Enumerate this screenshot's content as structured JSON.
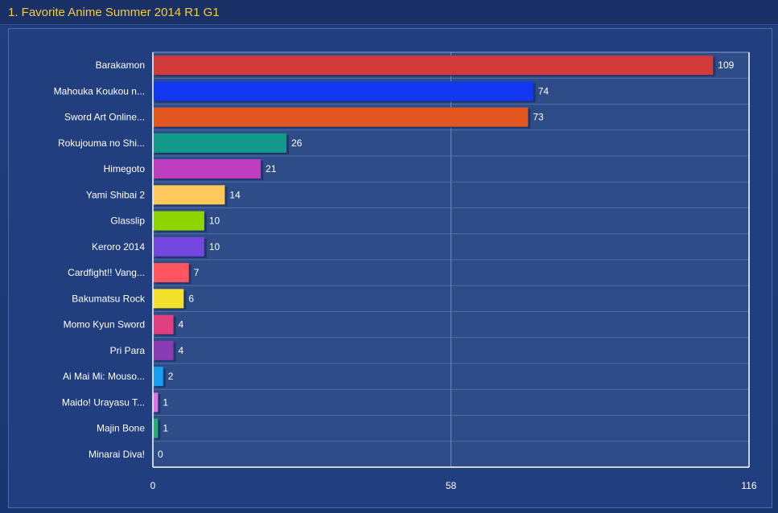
{
  "window": {
    "title": "1. Favorite Anime Summer 2014 R1 G1"
  },
  "colors": {
    "background": "#1d3a75",
    "plot_area": "#2d4c88",
    "title": "#f3cc3a"
  },
  "chart_data": {
    "type": "bar",
    "orientation": "horizontal",
    "title": "1. Favorite Anime Summer 2014 R1 G1",
    "xlabel": "",
    "ylabel": "",
    "xlim": [
      0,
      116
    ],
    "x_ticks": [
      "0",
      "58",
      "116"
    ],
    "grid": true,
    "legend": "none",
    "categories": [
      "Barakamon",
      "Mahouka Koukou n...",
      "Sword Art Online...",
      "Rokujouma no Shi...",
      "Himegoto",
      "Yami Shibai 2",
      "Glasslip",
      "Keroro 2014",
      "Cardfight!! Vang...",
      "Bakumatsu Rock",
      "Momo Kyun Sword",
      "Pri Para",
      "Ai Mai Mi: Mouso...",
      "Maido! Urayasu T...",
      "Majin Bone",
      "Minarai Diva!"
    ],
    "values": [
      109,
      74,
      73,
      26,
      21,
      14,
      10,
      10,
      7,
      6,
      4,
      4,
      2,
      1,
      1,
      0
    ],
    "value_labels": [
      "109",
      "74",
      "73",
      "26",
      "21",
      "14",
      "10",
      "10",
      "7",
      "6",
      "4",
      "4",
      "2",
      "1",
      "1",
      "0"
    ],
    "bar_colors": [
      "#d23a3a",
      "#1238f0",
      "#e2571f",
      "#12998a",
      "#be3cbe",
      "#ffc85a",
      "#8fd600",
      "#7447de",
      "#ff5560",
      "#f2e02a",
      "#e04080",
      "#8c3cb2",
      "#18a0f0",
      "#e070e8",
      "#20b070",
      "#8080a0"
    ]
  }
}
